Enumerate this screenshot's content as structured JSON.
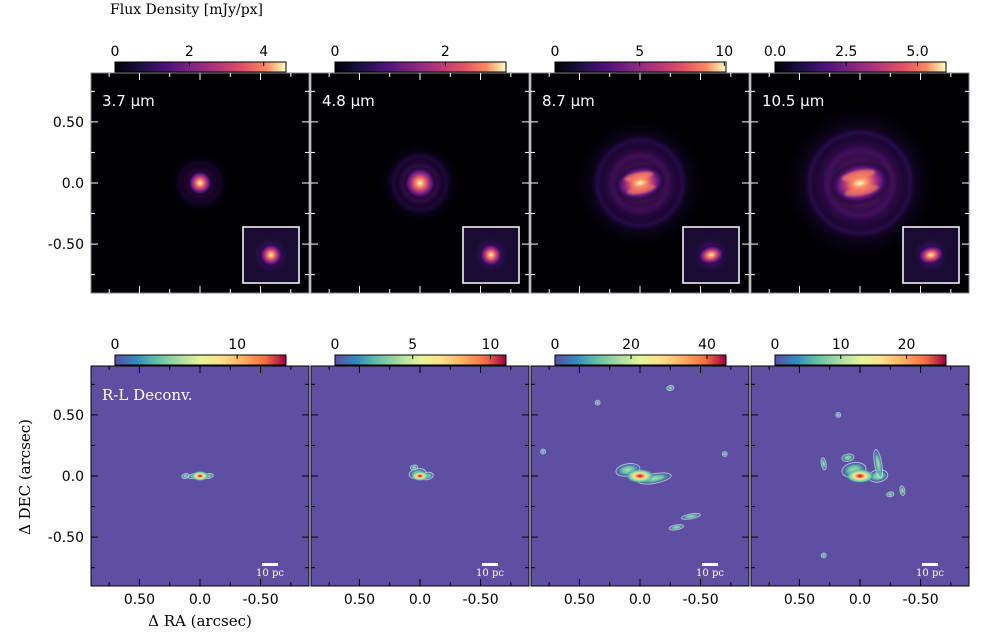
{
  "figure": {
    "colorbar_title": "Flux Density  [mJy/px]",
    "xlabel": "Δ RA (arcsec)",
    "ylabel": "Δ DEC (arcsec)"
  },
  "chart_data": {
    "type": "heatmap",
    "x_ticks": [
      "0.50",
      "0.0",
      "-0.50"
    ],
    "y_ticks": [
      "0.50",
      "0.0",
      "-0.50"
    ],
    "x_tick_values": [
      0.5,
      0.0,
      -0.5
    ],
    "y_tick_values": [
      0.5,
      0.0,
      -0.5
    ],
    "xlim": [
      0.9,
      -0.9
    ],
    "ylim": [
      -0.9,
      0.9
    ],
    "top_row": {
      "colormap": "magma",
      "panels": [
        {
          "label": "3.7 μm",
          "colorbar_ticks": [
            "0",
            "2",
            "4"
          ],
          "colorbar_tick_values": [
            0,
            2,
            4
          ],
          "colorbar_range": [
            0,
            4.6
          ],
          "scale_arcsec": 0.13,
          "rings": 0.35,
          "double_core": false
        },
        {
          "label": "4.8 μm",
          "colorbar_ticks": [
            "0",
            "2"
          ],
          "colorbar_tick_values": [
            0,
            2
          ],
          "colorbar_range": [
            0,
            3.1
          ],
          "scale_arcsec": 0.17,
          "rings": 0.55,
          "double_core": false
        },
        {
          "label": "8.7 μm",
          "colorbar_ticks": [
            "0",
            "5",
            "10"
          ],
          "colorbar_tick_values": [
            0,
            5,
            10
          ],
          "colorbar_range": [
            0,
            10.1
          ],
          "scale_arcsec": 0.27,
          "rings": 0.75,
          "double_core": true
        },
        {
          "label": "10.5 μm",
          "colorbar_ticks": [
            "0.0",
            "2.5",
            "5.0"
          ],
          "colorbar_tick_values": [
            0,
            2.5,
            5.0
          ],
          "colorbar_range": [
            0,
            6.0
          ],
          "scale_arcsec": 0.32,
          "rings": 0.8,
          "double_core": true
        }
      ]
    },
    "bottom_row": {
      "colormap": "spectral",
      "panel_label": "R-L Deconv.",
      "scalebar_label": "10 pc",
      "panels": [
        {
          "colorbar_ticks": [
            "0",
            "10"
          ],
          "colorbar_tick_values": [
            0,
            10
          ],
          "colorbar_range": [
            0,
            14
          ]
        },
        {
          "colorbar_ticks": [
            "0",
            "5",
            "10"
          ],
          "colorbar_tick_values": [
            0,
            5,
            10
          ],
          "colorbar_range": [
            0,
            11
          ]
        },
        {
          "colorbar_ticks": [
            "0",
            "20",
            "40"
          ],
          "colorbar_tick_values": [
            0,
            20,
            40
          ],
          "colorbar_range": [
            0,
            45
          ]
        },
        {
          "colorbar_ticks": [
            "0",
            "10",
            "20"
          ],
          "colorbar_tick_values": [
            0,
            10,
            20
          ],
          "colorbar_range": [
            0,
            26
          ]
        }
      ]
    }
  }
}
